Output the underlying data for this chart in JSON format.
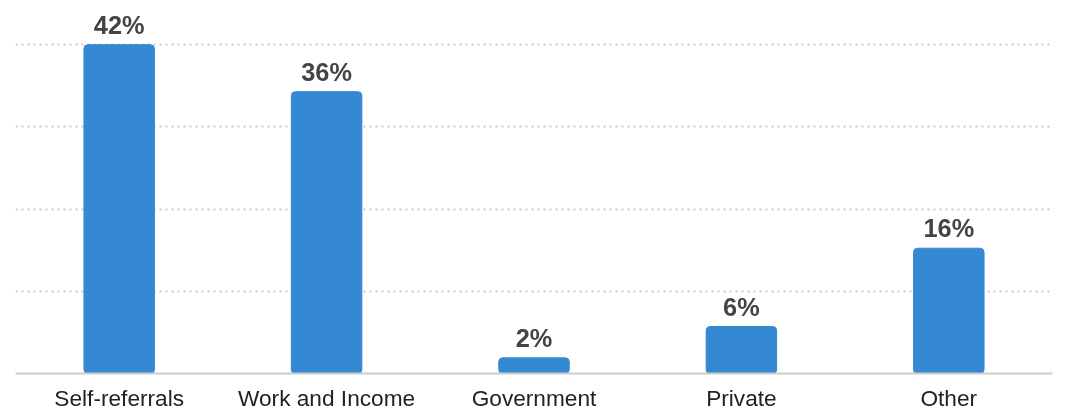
{
  "chart_data": {
    "type": "bar",
    "categories": [
      "Self-referrals",
      "Work and Income",
      "Government",
      "Private",
      "Other"
    ],
    "values": [
      42,
      36,
      2,
      6,
      16
    ],
    "color": "#3589d3",
    "value_labels": [
      "42%",
      "36%",
      "2%",
      "6%",
      "16%"
    ],
    "yticks": [
      {
        "value": 10.5,
        "label": null
      },
      {
        "value": 21,
        "label": null
      },
      {
        "value": 31.5,
        "label": null
      },
      {
        "value": 42,
        "label": null
      }
    ],
    "tick_labels": "x",
    "grid": "y"
  }
}
